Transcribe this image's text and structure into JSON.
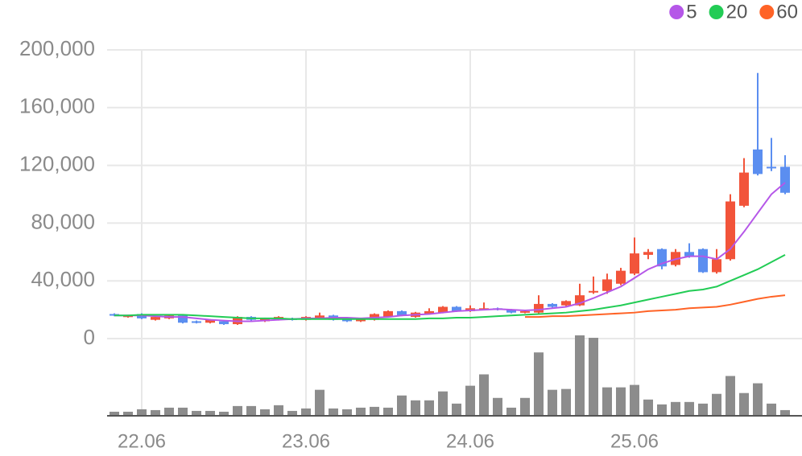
{
  "chart_data": {
    "type": "candlestick",
    "categories": [
      null,
      null,
      "22.06",
      null,
      null,
      null,
      null,
      null,
      null,
      null,
      null,
      null,
      null,
      null,
      "23.06",
      null,
      null,
      null,
      null,
      null,
      null,
      null,
      null,
      null,
      null,
      null,
      "24.06",
      null,
      null,
      null,
      null,
      null,
      null,
      null,
      null,
      null,
      null,
      null,
      "25.06",
      null,
      null,
      null,
      null,
      null,
      null,
      null,
      null,
      null,
      null,
      null
    ],
    "open": [
      17000,
      15000,
      17000,
      13000,
      14000,
      16000,
      12000,
      11000,
      12000,
      10000,
      15000,
      12000,
      13000,
      14000,
      13000,
      14000,
      16000,
      14000,
      12000,
      13000,
      15000,
      19000,
      15000,
      17000,
      18000,
      22000,
      19000,
      20000,
      21000,
      20000,
      18000,
      18000,
      24000,
      23000,
      23000,
      32000,
      33000,
      38000,
      45000,
      58000,
      62000,
      51000,
      60000,
      62000,
      46000,
      55000,
      92000,
      131000,
      119000,
      119000
    ],
    "high": [
      17500,
      16500,
      17500,
      15500,
      16500,
      16500,
      12500,
      13500,
      12500,
      15500,
      15500,
      14500,
      15500,
      14500,
      15500,
      18000,
      16500,
      14500,
      14500,
      17500,
      19500,
      19500,
      18500,
      21000,
      22500,
      22500,
      23000,
      25000,
      21500,
      20500,
      19500,
      30000,
      24500,
      26500,
      38000,
      43000,
      45000,
      49000,
      70000,
      62000,
      62500,
      62000,
      66000,
      62500,
      62000,
      100000,
      125000,
      184000,
      139000,
      127000
    ],
    "low": [
      15500,
      14500,
      13500,
      12500,
      13500,
      10500,
      10500,
      10500,
      9500,
      9500,
      12500,
      11500,
      12500,
      12500,
      12500,
      13500,
      12500,
      11500,
      11500,
      12500,
      14500,
      15500,
      14500,
      16500,
      17500,
      18500,
      18500,
      19500,
      19500,
      17500,
      17500,
      17500,
      21500,
      22500,
      22500,
      31000,
      31000,
      37000,
      44000,
      55000,
      48000,
      50000,
      56000,
      45500,
      45000,
      54000,
      91000,
      113000,
      116000,
      100000
    ],
    "close": [
      16000,
      16000,
      14000,
      15000,
      16000,
      11000,
      11000,
      13000,
      10000,
      15000,
      13000,
      14000,
      15000,
      13000,
      15000,
      16000,
      13000,
      12000,
      14000,
      17000,
      19000,
      16000,
      18000,
      19000,
      22000,
      19000,
      21000,
      21000,
      20000,
      18000,
      19000,
      24000,
      22000,
      26000,
      30000,
      33000,
      41000,
      47000,
      59000,
      60000,
      50000,
      60000,
      57000,
      46000,
      55000,
      95000,
      115000,
      114000,
      118000,
      101000
    ],
    "up_color": "#f2543a",
    "down_color": "#5b8ef0",
    "volume": {
      "color": "#8c8c8c",
      "values": [
        5,
        5,
        8,
        7,
        10,
        10,
        6,
        6,
        5,
        12,
        12,
        8,
        13,
        6,
        9,
        32,
        9,
        8,
        10,
        11,
        10,
        25,
        19,
        19,
        30,
        15,
        37,
        51,
        22,
        10,
        22,
        78,
        32,
        33,
        99,
        96,
        35,
        35,
        38,
        20,
        14,
        17,
        17,
        15,
        27,
        49,
        28,
        40,
        15,
        7
      ]
    },
    "series": [
      {
        "name": "5",
        "color": "#b557e8",
        "values": [
          16000,
          16000,
          16000,
          15500,
          15000,
          15000,
          14000,
          13000,
          12500,
          12000,
          12000,
          12500,
          13000,
          13500,
          14000,
          14000,
          14500,
          14500,
          14000,
          14500,
          15000,
          16000,
          16500,
          17000,
          18000,
          19000,
          19500,
          20000,
          20500,
          20000,
          19500,
          20000,
          21000,
          22000,
          24500,
          28000,
          32000,
          36000,
          42000,
          48000,
          52000,
          55000,
          57000,
          57000,
          55000,
          62000,
          74000,
          87000,
          100000,
          108000
        ]
      },
      {
        "name": "20",
        "color": "#22cc55",
        "values": [
          16000,
          16000,
          16500,
          16500,
          16500,
          16500,
          16000,
          15500,
          15000,
          14500,
          14000,
          14000,
          14000,
          13500,
          13500,
          13500,
          13500,
          13500,
          13500,
          13500,
          13500,
          13500,
          13500,
          14000,
          14000,
          14500,
          14500,
          15000,
          15500,
          16000,
          16500,
          17000,
          17500,
          18000,
          19000,
          20000,
          21500,
          23000,
          25000,
          27000,
          29000,
          31000,
          33000,
          34000,
          36000,
          40000,
          44000,
          48000,
          53000,
          58000
        ]
      },
      {
        "name": "60",
        "color": "#ff6326",
        "values": [
          null,
          null,
          null,
          null,
          null,
          null,
          null,
          null,
          null,
          null,
          null,
          null,
          null,
          null,
          null,
          null,
          null,
          null,
          null,
          null,
          null,
          null,
          null,
          null,
          null,
          null,
          null,
          null,
          null,
          null,
          15000,
          15000,
          15500,
          15500,
          16000,
          16500,
          17000,
          17500,
          18000,
          19000,
          19500,
          20000,
          21000,
          21500,
          22000,
          23500,
          25500,
          27500,
          29000,
          30000
        ]
      }
    ],
    "ylim": [
      0,
      200000
    ],
    "yticks": [
      0,
      {
        "value": 40000,
        "label": "40,000"
      },
      {
        "value": 80000,
        "label": "80,000"
      },
      {
        "value": 120000,
        "label": "120,000"
      },
      {
        "value": 160000,
        "label": "160,000"
      },
      {
        "value": 200000,
        "label": "200,000"
      }
    ],
    "grid": true,
    "legend": "top-right"
  }
}
